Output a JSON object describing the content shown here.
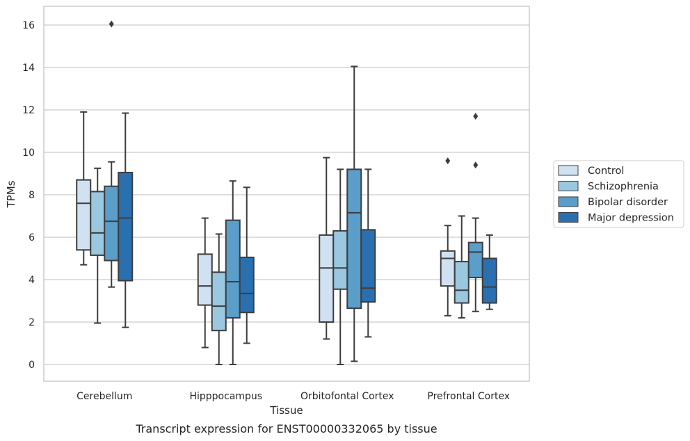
{
  "chart_data": {
    "type": "box",
    "caption": "Transcript expression for ENST00000332065 by tissue",
    "xlabel": "Tissue",
    "ylabel": "TPMs",
    "ylim": [
      -0.8,
      16.85
    ],
    "yticks": [
      0,
      2,
      4,
      6,
      8,
      10,
      12,
      14,
      16
    ],
    "grid": "horizontal",
    "legend_placement": "outside-right",
    "categories": [
      "Cerebellum",
      "Hipppocampus",
      "Orbitofontal Cortex",
      "Prefrontal Cortex"
    ],
    "series": [
      {
        "name": "Control",
        "color": "#d0e1f2",
        "boxes": [
          {
            "whisker_low": 4.7,
            "q1": 5.4,
            "median": 7.6,
            "q3": 8.7,
            "whisker_high": 11.9,
            "outliers": []
          },
          {
            "whisker_low": 0.8,
            "q1": 2.8,
            "median": 3.7,
            "q3": 5.2,
            "whisker_high": 6.9,
            "outliers": []
          },
          {
            "whisker_low": 1.2,
            "q1": 2.0,
            "median": 4.55,
            "q3": 6.1,
            "whisker_high": 9.75,
            "outliers": []
          },
          {
            "whisker_low": 2.3,
            "q1": 3.7,
            "median": 5.0,
            "q3": 5.35,
            "whisker_high": 6.55,
            "outliers": [
              9.6
            ]
          }
        ]
      },
      {
        "name": "Schizophrenia",
        "color": "#9ac8e0",
        "boxes": [
          {
            "whisker_low": 1.95,
            "q1": 5.15,
            "median": 6.2,
            "q3": 8.15,
            "whisker_high": 9.25,
            "outliers": []
          },
          {
            "whisker_low": 0.0,
            "q1": 1.6,
            "median": 2.75,
            "q3": 4.35,
            "whisker_high": 6.15,
            "outliers": []
          },
          {
            "whisker_low": 0.0,
            "q1": 3.55,
            "median": 4.55,
            "q3": 6.3,
            "whisker_high": 9.2,
            "outliers": []
          },
          {
            "whisker_low": 2.2,
            "q1": 2.9,
            "median": 3.5,
            "q3": 4.85,
            "whisker_high": 7.0,
            "outliers": []
          }
        ]
      },
      {
        "name": "Bipolar disorder",
        "color": "#5a9ec9",
        "boxes": [
          {
            "whisker_low": 3.65,
            "q1": 4.9,
            "median": 6.75,
            "q3": 8.4,
            "whisker_high": 9.55,
            "outliers": [
              16.05
            ]
          },
          {
            "whisker_low": 0.0,
            "q1": 2.2,
            "median": 3.9,
            "q3": 6.8,
            "whisker_high": 8.65,
            "outliers": []
          },
          {
            "whisker_low": 0.15,
            "q1": 2.65,
            "median": 7.15,
            "q3": 9.2,
            "whisker_high": 14.05,
            "outliers": []
          },
          {
            "whisker_low": 2.5,
            "q1": 4.1,
            "median": 5.3,
            "q3": 5.75,
            "whisker_high": 6.9,
            "outliers": [
              9.4,
              11.7
            ]
          }
        ]
      },
      {
        "name": "Major depression",
        "color": "#2a6fb0",
        "boxes": [
          {
            "whisker_low": 1.75,
            "q1": 3.95,
            "median": 6.9,
            "q3": 9.05,
            "whisker_high": 11.85,
            "outliers": []
          },
          {
            "whisker_low": 1.0,
            "q1": 2.45,
            "median": 3.35,
            "q3": 5.05,
            "whisker_high": 8.35,
            "outliers": []
          },
          {
            "whisker_low": 1.3,
            "q1": 2.95,
            "median": 3.6,
            "q3": 6.35,
            "whisker_high": 9.2,
            "outliers": []
          },
          {
            "whisker_low": 2.6,
            "q1": 2.9,
            "median": 3.65,
            "q3": 5.0,
            "whisker_high": 6.1,
            "outliers": []
          }
        ]
      }
    ]
  }
}
